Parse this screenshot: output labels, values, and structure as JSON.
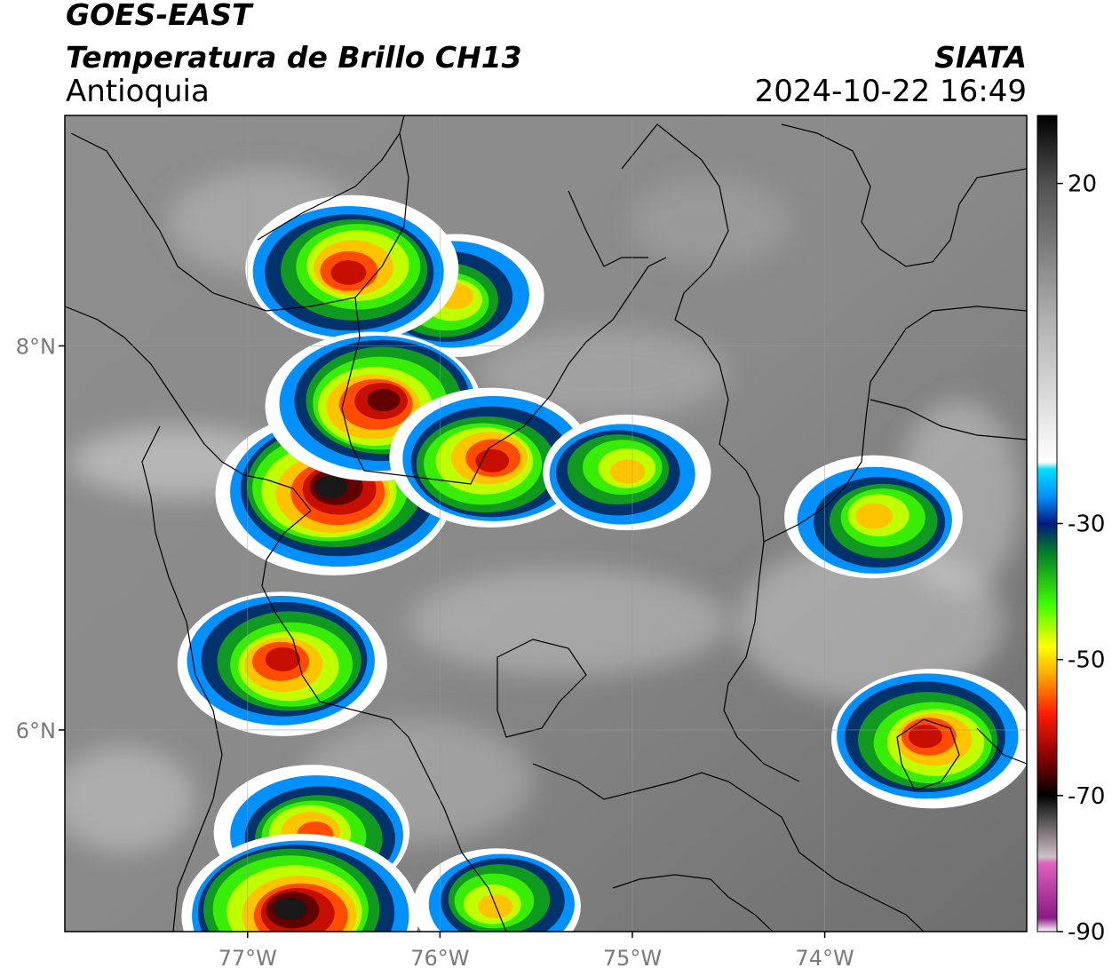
{
  "header": {
    "title_line1": "GOES-EAST",
    "title_line2": "Temperatura de Brillo CH13",
    "region": "Antioquia",
    "organization": "SIATA",
    "timestamp": "2024-10-22 16:49"
  },
  "map": {
    "lon_range": [
      -77.95,
      -72.95
    ],
    "lat_range": [
      4.95,
      9.2
    ],
    "longitude_ticks": [
      {
        "value": -77,
        "label": "77°W"
      },
      {
        "value": -76,
        "label": "76°W"
      },
      {
        "value": -75,
        "label": "75°W"
      },
      {
        "value": -74,
        "label": "74°W"
      }
    ],
    "latitude_ticks": [
      {
        "value": 8,
        "label": "8°N"
      },
      {
        "value": 6,
        "label": "6°N"
      }
    ],
    "grid": true
  },
  "colorbar": {
    "range": [
      -90,
      30
    ],
    "ticks": [
      {
        "value": 20,
        "label": "20"
      },
      {
        "value": -30,
        "label": "-30"
      },
      {
        "value": -50,
        "label": "-50"
      },
      {
        "value": -70,
        "label": "-70"
      },
      {
        "value": -90,
        "label": "-90"
      }
    ],
    "stops": [
      {
        "value": -90,
        "color": "#ffffff"
      },
      {
        "value": -88,
        "color": "#8a1a86"
      },
      {
        "value": -80,
        "color": "#e060c0"
      },
      {
        "value": -79,
        "color": "#d0c0c8"
      },
      {
        "value": -72,
        "color": "#303030"
      },
      {
        "value": -70,
        "color": "#000000"
      },
      {
        "value": -65,
        "color": "#7a0000"
      },
      {
        "value": -58,
        "color": "#ff1a00"
      },
      {
        "value": -52,
        "color": "#ffb000"
      },
      {
        "value": -48,
        "color": "#ffff00"
      },
      {
        "value": -42,
        "color": "#40ff00"
      },
      {
        "value": -34,
        "color": "#007a2a"
      },
      {
        "value": -30,
        "color": "#001a80"
      },
      {
        "value": -26,
        "color": "#0090ff"
      },
      {
        "value": -22,
        "color": "#00e0ff"
      },
      {
        "value": -21,
        "color": "#ffffff"
      },
      {
        "value": 0,
        "color": "#b0b0b0"
      },
      {
        "value": 20,
        "color": "#505050"
      },
      {
        "value": 30,
        "color": "#000000"
      }
    ]
  },
  "storm_cells": [
    {
      "lon": -76.55,
      "lat": 7.25,
      "peak": -72
    },
    {
      "lon": -75.95,
      "lat": 8.25,
      "peak": -55
    },
    {
      "lon": -76.45,
      "lat": 8.4,
      "peak": -65
    },
    {
      "lon": -76.32,
      "lat": 7.7,
      "peak": -66
    },
    {
      "lon": -75.75,
      "lat": 7.4,
      "peak": -62
    },
    {
      "lon": -75.05,
      "lat": 7.35,
      "peak": -52
    },
    {
      "lon": -76.8,
      "lat": 6.35,
      "peak": -64
    },
    {
      "lon": -76.65,
      "lat": 5.45,
      "peak": -60
    },
    {
      "lon": -76.75,
      "lat": 5.05,
      "peak": -72
    },
    {
      "lon": -73.45,
      "lat": 5.95,
      "peak": -62
    },
    {
      "lon": -73.72,
      "lat": 7.1,
      "peak": -55
    },
    {
      "lon": -75.7,
      "lat": 5.1,
      "peak": -52
    }
  ]
}
